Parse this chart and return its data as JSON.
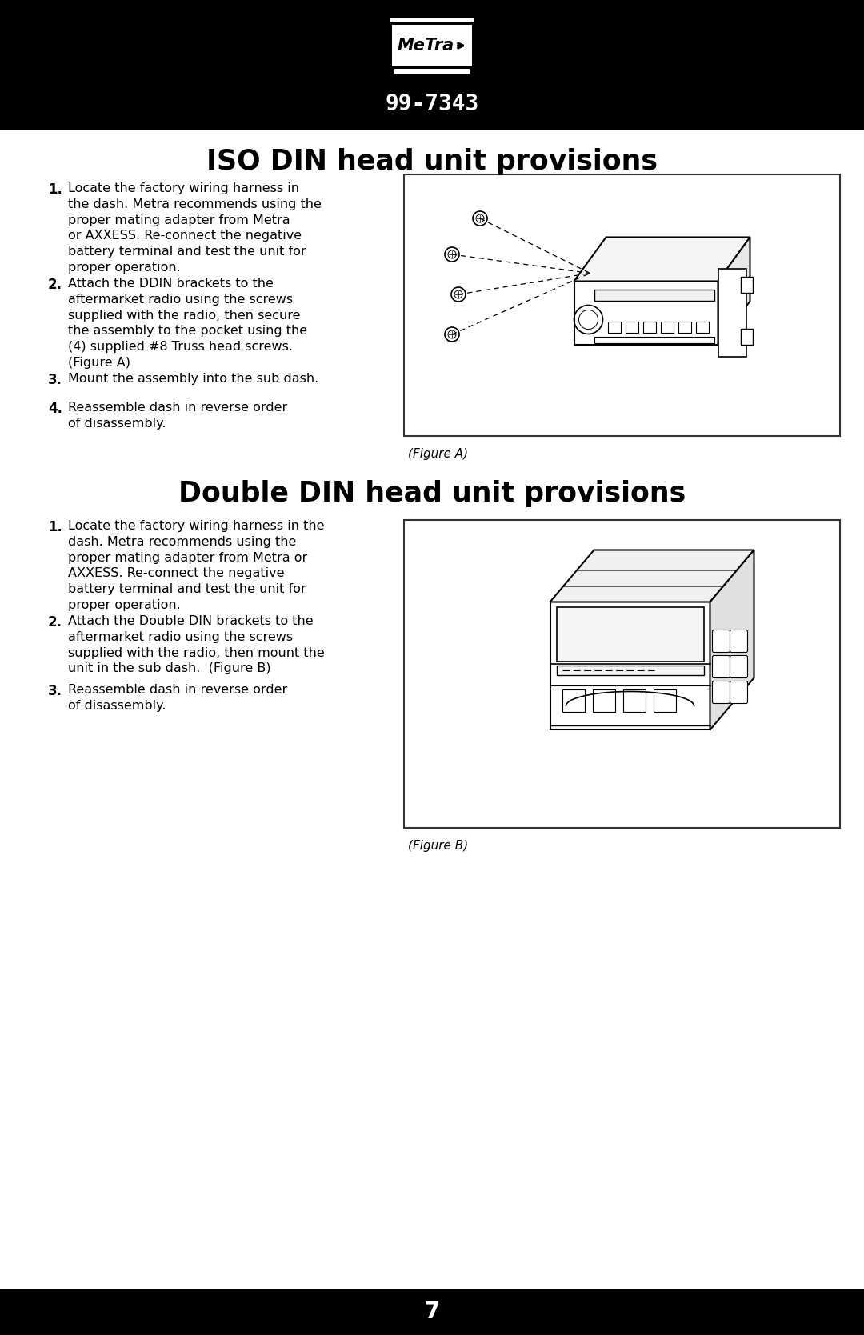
{
  "bg_color": "#ffffff",
  "header_bg": "#000000",
  "header_text_color": "#ffffff",
  "header_model": "99-7343",
  "header_model_fontsize": 20,
  "footer_bg": "#000000",
  "footer_text": "7",
  "footer_text_color": "#ffffff",
  "footer_fontsize": 20,
  "section1_title": "ISO DIN head unit provisions",
  "section2_title": "Double DIN head unit provisions",
  "section_title_fontsize": 25,
  "body_fontsize": 11.5,
  "num_fontsize": 12,
  "figure_caption1": "(Figure A)",
  "figure_caption2": "(Figure B)",
  "section1_items": [
    {
      "num": "1.",
      "text": "Locate the factory wiring harness in\nthe dash. Metra recommends using the\nproper mating adapter from Metra\nor AXXESS. Re-connect the negative\nbattery terminal and test the unit for\nproper operation."
    },
    {
      "num": "2.",
      "text": "Attach the DDIN brackets to the\naftermarket radio using the screws\nsupplied with the radio, then secure\nthe assembly to the pocket using the\n(4) supplied #8 Truss head screws.\n(Figure A)"
    },
    {
      "num": "3.",
      "text": "Mount the assembly into the sub dash."
    },
    {
      "num": "4.",
      "text": "Reassemble dash in reverse order\nof disassembly."
    }
  ],
  "section2_items": [
    {
      "num": "1.",
      "text": "Locate the factory wiring harness in the\ndash. Metra recommends using the\nproper mating adapter from Metra or\nAXXESS. Re-connect the negative\nbattery terminal and test the unit for\nproper operation."
    },
    {
      "num": "2.",
      "text": "Attach the Double DIN brackets to the\naftermarket radio using the screws\nsupplied with the radio, then mount the\nunit in the sub dash.  (Figure B)"
    },
    {
      "num": "3.",
      "text": "Reassemble dash in reverse order\nof disassembly."
    }
  ]
}
